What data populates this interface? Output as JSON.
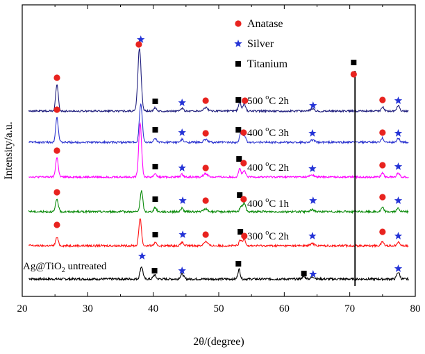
{
  "chart_data": {
    "type": "line",
    "title": "",
    "xlabel": "2θ/(degree)",
    "ylabel": "Intensity/a.u.",
    "xlim": [
      20,
      80
    ],
    "xticks": [
      20,
      30,
      40,
      50,
      60,
      70,
      80
    ],
    "y_units": "arbitrary (offset traces)",
    "legend": {
      "placement": "top-center",
      "entries": [
        {
          "name": "Anatase",
          "marker": "circle",
          "color": "#e8231f"
        },
        {
          "name": "Silver",
          "marker": "star",
          "color": "#2433d6"
        },
        {
          "name": "Titanium",
          "marker": "square",
          "color": "#000000"
        }
      ]
    },
    "peaks": {
      "anatase": [
        25.3,
        37.9,
        48.0,
        53.9,
        70.3,
        75.0
      ],
      "silver": [
        38.1,
        44.3,
        64.4,
        77.4
      ],
      "titanium": [
        40.2,
        53.0,
        63.0,
        70.7
      ]
    },
    "series": [
      {
        "name": "Ag@TiO2 untreated",
        "label_main": "Ag@TiO",
        "label_sub": "2",
        "label_rest": " untreated",
        "color": "#000000",
        "baseline": 0,
        "noise": 1.6,
        "peaks": [
          [
            38.2,
            18,
            0.22
          ],
          [
            40.2,
            6,
            0.2
          ],
          [
            44.4,
            7,
            0.25
          ],
          [
            53.1,
            14,
            0.18
          ],
          [
            63.0,
            3,
            0.3
          ],
          [
            64.4,
            3,
            0.3
          ],
          [
            70.7,
            0,
            0.1
          ],
          [
            77.4,
            10,
            0.22
          ]
        ],
        "markers": [
          {
            "type": "star",
            "x": 38.3,
            "y": 33
          },
          {
            "type": "square",
            "x": 40.2,
            "y": 12
          },
          {
            "type": "star",
            "x": 44.4,
            "y": 12
          },
          {
            "type": "square",
            "x": 53.0,
            "y": 22
          },
          {
            "type": "square",
            "x": 63.0,
            "y": 8
          },
          {
            "type": "star",
            "x": 64.4,
            "y": 7
          },
          {
            "type": "star",
            "x": 77.4,
            "y": 15
          }
        ]
      },
      {
        "name": "300 °C 2h",
        "label_main": "300 ",
        "label_sup": "o",
        "label_rest": "C 2h",
        "color": "#ff1010",
        "baseline": 48,
        "noise": 1.4,
        "peaks": [
          [
            25.3,
            12,
            0.2
          ],
          [
            38.0,
            40,
            0.2
          ],
          [
            40.3,
            4,
            0.2
          ],
          [
            44.4,
            5,
            0.2
          ],
          [
            48.0,
            6,
            0.3
          ],
          [
            53.3,
            8,
            0.2
          ],
          [
            53.9,
            10,
            0.2
          ],
          [
            64.3,
            3,
            0.3
          ],
          [
            70.7,
            0,
            0.1
          ],
          [
            75.0,
            6,
            0.2
          ],
          [
            77.4,
            6,
            0.2
          ]
        ],
        "markers": [
          {
            "type": "circle",
            "x": 25.3,
            "y": 30
          },
          {
            "type": "square",
            "x": 40.3,
            "y": 16
          },
          {
            "type": "star",
            "x": 44.5,
            "y": 16
          },
          {
            "type": "circle",
            "x": 48.0,
            "y": 16
          },
          {
            "type": "square",
            "x": 53.3,
            "y": 20
          },
          {
            "type": "circle",
            "x": 53.9,
            "y": 14
          },
          {
            "type": "star",
            "x": 64.3,
            "y": 14
          },
          {
            "type": "circle",
            "x": 75.0,
            "y": 20
          },
          {
            "type": "star",
            "x": 77.4,
            "y": 14
          }
        ]
      },
      {
        "name": "400 °C 1h",
        "label_main": "400 ",
        "label_sup": "o",
        "label_rest": "C 1h",
        "color": "#0a8a0a",
        "baseline": 97,
        "noise": 1.4,
        "peaks": [
          [
            25.3,
            18,
            0.2
          ],
          [
            38.2,
            30,
            0.2
          ],
          [
            40.3,
            6,
            0.2
          ],
          [
            44.4,
            5,
            0.2
          ],
          [
            48.0,
            4,
            0.3
          ],
          [
            53.4,
            8,
            0.2
          ],
          [
            53.9,
            12,
            0.2
          ],
          [
            64.3,
            3,
            0.3
          ],
          [
            70.9,
            0,
            0.1
          ],
          [
            75.0,
            6,
            0.2
          ],
          [
            77.4,
            5,
            0.2
          ]
        ],
        "markers": [
          {
            "type": "circle",
            "x": 25.3,
            "y": 28
          },
          {
            "type": "square",
            "x": 40.3,
            "y": 18
          },
          {
            "type": "star",
            "x": 44.5,
            "y": 16
          },
          {
            "type": "circle",
            "x": 48.0,
            "y": 16
          },
          {
            "type": "square",
            "x": 53.2,
            "y": 24
          },
          {
            "type": "circle",
            "x": 53.8,
            "y": 18
          },
          {
            "type": "star",
            "x": 64.4,
            "y": 16
          },
          {
            "type": "circle",
            "x": 75.0,
            "y": 21
          },
          {
            "type": "star",
            "x": 77.4,
            "y": 16
          }
        ]
      },
      {
        "name": "400 °C 2h",
        "label_main": "400 ",
        "label_sup": "o",
        "label_rest": "C 2h",
        "color": "#ff00ff",
        "baseline": 147,
        "noise": 1.3,
        "peaks": [
          [
            25.3,
            28,
            0.2
          ],
          [
            38.0,
            78,
            0.22
          ],
          [
            40.3,
            5,
            0.2
          ],
          [
            44.4,
            4,
            0.2
          ],
          [
            48.0,
            5,
            0.3
          ],
          [
            53.2,
            12,
            0.2
          ],
          [
            53.9,
            9,
            0.2
          ],
          [
            64.2,
            3,
            0.3
          ],
          [
            70.8,
            0,
            0.1
          ],
          [
            75.0,
            6,
            0.2
          ],
          [
            77.4,
            6,
            0.2
          ]
        ],
        "markers": [
          {
            "type": "circle",
            "x": 25.3,
            "y": 38
          },
          {
            "type": "square",
            "x": 40.3,
            "y": 15
          },
          {
            "type": "star",
            "x": 44.4,
            "y": 13
          },
          {
            "type": "circle",
            "x": 48.0,
            "y": 13
          },
          {
            "type": "square",
            "x": 53.1,
            "y": 26
          },
          {
            "type": "circle",
            "x": 53.8,
            "y": 20
          },
          {
            "type": "star",
            "x": 64.3,
            "y": 12
          },
          {
            "type": "circle",
            "x": 75.0,
            "y": 17
          },
          {
            "type": "star",
            "x": 77.4,
            "y": 15
          }
        ]
      },
      {
        "name": "400 °C 3h",
        "label_main": "400 ",
        "label_sup": "o",
        "label_rest": "C 3h",
        "color": "#2e36d0",
        "baseline": 197,
        "noise": 1.4,
        "peaks": [
          [
            25.3,
            36,
            0.2
          ],
          [
            38.1,
            56,
            0.22
          ],
          [
            40.3,
            5,
            0.2
          ],
          [
            44.4,
            4,
            0.2
          ],
          [
            48.0,
            4,
            0.3
          ],
          [
            53.4,
            15,
            0.2
          ],
          [
            53.9,
            10,
            0.2
          ],
          [
            64.3,
            3,
            0.3
          ],
          [
            70.9,
            0,
            0.1
          ],
          [
            75.0,
            6,
            0.2
          ],
          [
            77.4,
            6,
            0.2
          ]
        ],
        "markers": [
          {
            "type": "circle",
            "x": 25.3,
            "y": 47
          },
          {
            "type": "square",
            "x": 40.3,
            "y": 18
          },
          {
            "type": "star",
            "x": 44.4,
            "y": 14
          },
          {
            "type": "circle",
            "x": 48.0,
            "y": 13
          },
          {
            "type": "square",
            "x": 53.0,
            "y": 18
          },
          {
            "type": "circle",
            "x": 53.8,
            "y": 14
          },
          {
            "type": "star",
            "x": 64.3,
            "y": 13
          },
          {
            "type": "circle",
            "x": 75.0,
            "y": 14
          },
          {
            "type": "star",
            "x": 77.4,
            "y": 13
          }
        ]
      },
      {
        "name": "500 °C 2h",
        "label_main": "500 ",
        "label_sup": "o",
        "label_rest": "C 2h",
        "color": "#1f1e7d",
        "baseline": 242,
        "noise": 1.3,
        "peaks": [
          [
            25.3,
            38,
            0.2
          ],
          [
            37.9,
            90,
            0.25
          ],
          [
            40.3,
            5,
            0.2
          ],
          [
            44.4,
            4,
            0.2
          ],
          [
            48.0,
            5,
            0.3
          ],
          [
            53.2,
            12,
            0.2
          ],
          [
            53.9,
            10,
            0.2
          ],
          [
            64.3,
            3,
            0.3
          ],
          [
            70.7,
            0,
            0.1
          ],
          [
            75.0,
            6,
            0.2
          ],
          [
            77.4,
            8,
            0.2
          ]
        ],
        "markers": [
          {
            "type": "circle",
            "x": 25.3,
            "y": 48
          },
          {
            "type": "star",
            "x": 38.1,
            "y": 103
          },
          {
            "type": "circle",
            "x": 37.8,
            "y": 96
          },
          {
            "type": "square",
            "x": 40.3,
            "y": 14
          },
          {
            "type": "star",
            "x": 44.4,
            "y": 12
          },
          {
            "type": "circle",
            "x": 48.0,
            "y": 15
          },
          {
            "type": "square",
            "x": 53.0,
            "y": 16
          },
          {
            "type": "circle",
            "x": 54.0,
            "y": 15
          },
          {
            "type": "star",
            "x": 64.4,
            "y": 8
          },
          {
            "type": "circle",
            "x": 75.0,
            "y": 16
          },
          {
            "type": "star",
            "x": 77.4,
            "y": 15
          }
        ]
      }
    ],
    "shared_peak_70": {
      "x": 70.8,
      "bottom": -10,
      "top": 300,
      "markers": [
        {
          "type": "square",
          "x": 70.6,
          "y": 312
        },
        {
          "type": "circle",
          "x": 70.6,
          "y": 295
        }
      ]
    }
  }
}
